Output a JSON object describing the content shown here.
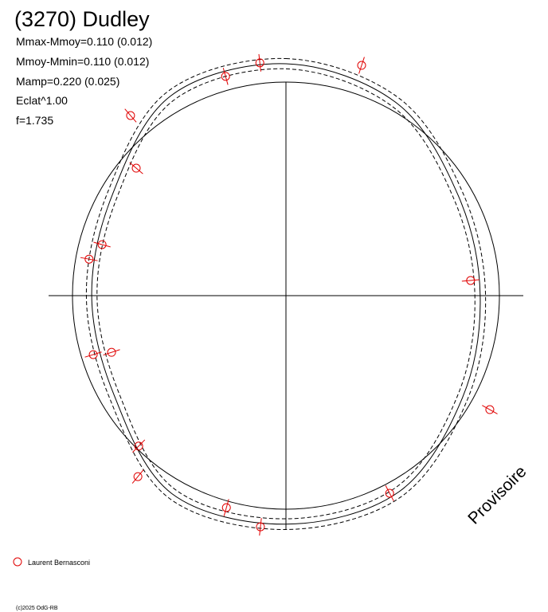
{
  "chart_data": {
    "type": "polar",
    "title": "(3270) Dudley",
    "stats": [
      "Mmax-Mmoy=0.110 (0.012)",
      "Mmoy-Mmin=0.110 (0.012)",
      "Mamp=0.220 (0.025)",
      "Eclat^1.00",
      "f=1.735"
    ],
    "watermark": "Provisoire",
    "copyright": "(c)2025 OdG-RB",
    "rlim": [
      0,
      1
    ],
    "series": [
      {
        "name": "Laurent Bernasconi",
        "color": "#e00000",
        "x": [
          353.6,
          344.6,
          18.2,
          319.2,
          310.4,
          285.5,
          280.5,
          85.3,
          252,
          253,
          119.2,
          224.4,
          219.3,
          152.3,
          195.7,
          186.3
        ],
        "values": [
          1.097,
          1.065,
          1.135,
          1.114,
          0.921,
          0.894,
          0.938,
          0.868,
          0.859,
          0.944,
          1.094,
          0.986,
          1.095,
          1.045,
          1.031,
          1.089
        ]
      }
    ],
    "fit": {
      "color": "#000000",
      "x": [
        0,
        30,
        60,
        90,
        120,
        150,
        180,
        210,
        240,
        270,
        300,
        330
      ],
      "values": [
        1.086,
        1.04,
        0.933,
        0.91,
        0.955,
        1.06,
        1.07,
        1.07,
        0.93,
        0.91,
        0.94,
        1.08
      ]
    },
    "bounds": [
      {
        "values": [
          1.11,
          1.065,
          0.958,
          0.935,
          0.98,
          1.085,
          1.095,
          1.095,
          0.955,
          0.935,
          0.965,
          1.105
        ]
      },
      {
        "values": [
          1.062,
          1.015,
          0.908,
          0.885,
          0.93,
          1.035,
          1.045,
          1.045,
          0.905,
          0.885,
          0.915,
          1.055
        ]
      }
    ]
  }
}
